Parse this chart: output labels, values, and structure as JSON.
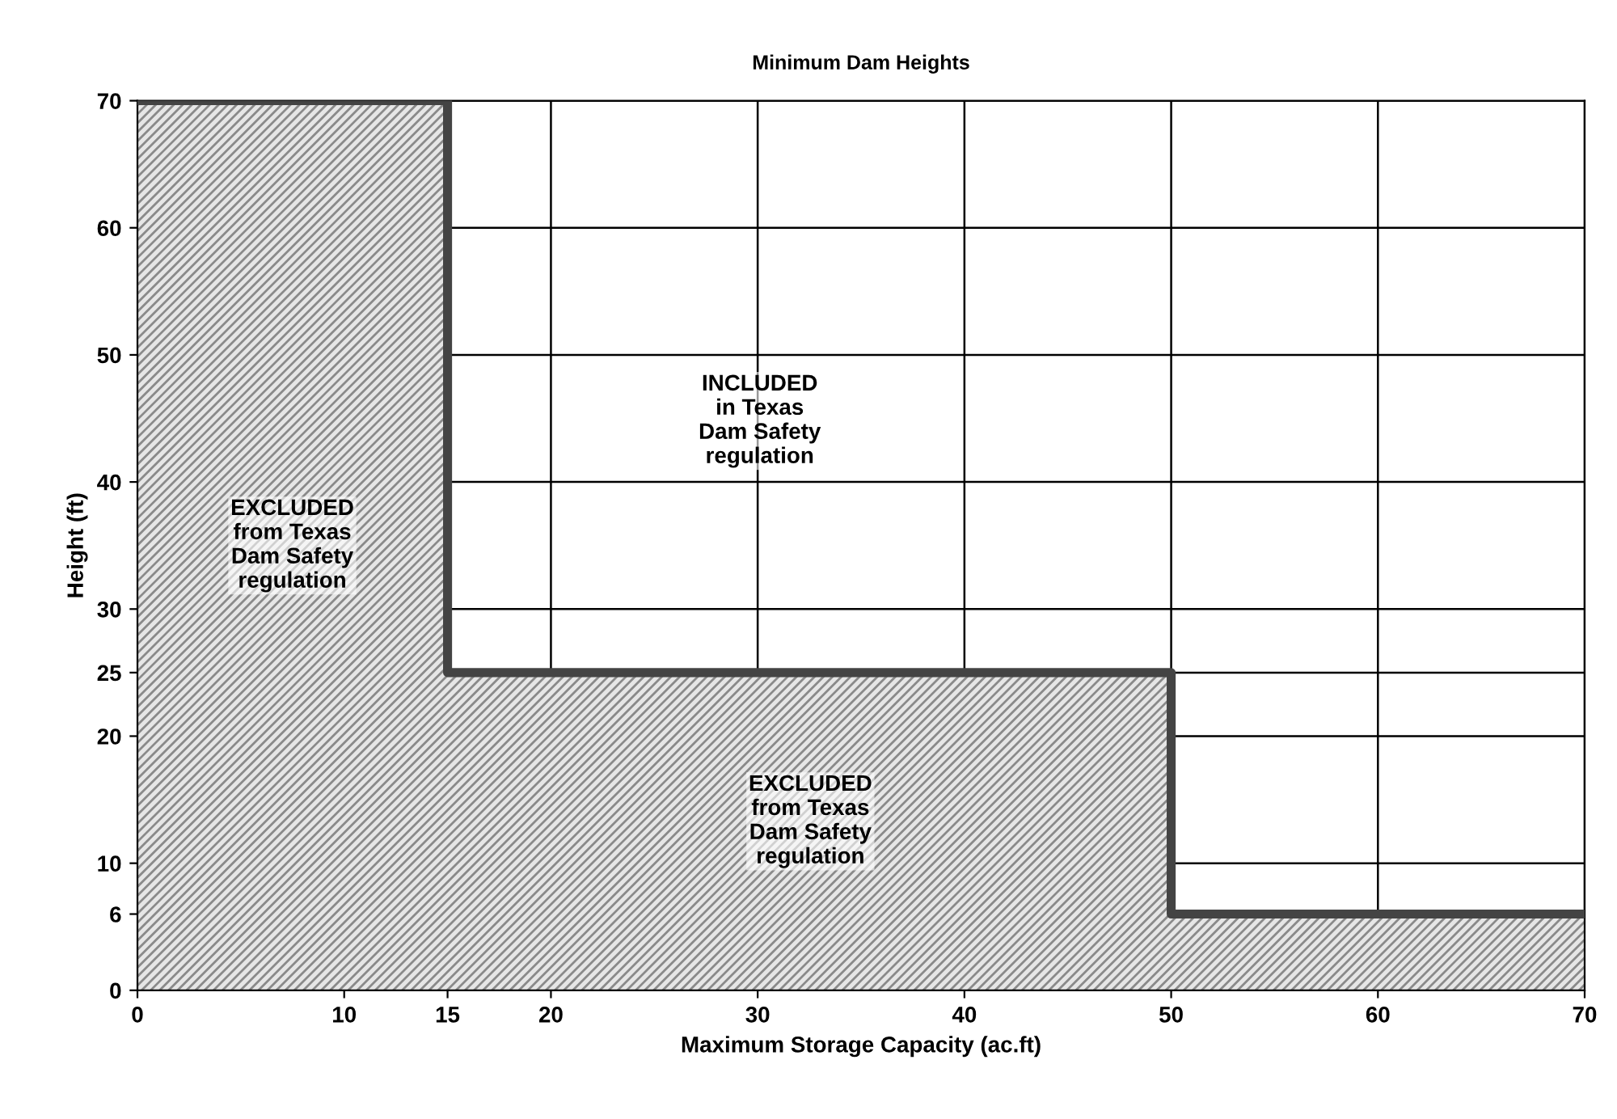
{
  "chart_data": {
    "type": "area",
    "title": "Minimum Dam Heights",
    "xlabel": "Maximum Storage Capacity (ac.ft)",
    "ylabel": "Height (ft)",
    "x": [
      0,
      15,
      15,
      50,
      50,
      70
    ],
    "series": [
      {
        "color": "#444444",
        "values": [
          70,
          70,
          25,
          25,
          6,
          6
        ]
      }
    ],
    "xlim": [
      0,
      70
    ],
    "ylim": [
      0,
      70
    ],
    "xticks": [
      0,
      10,
      15,
      20,
      30,
      40,
      50,
      60,
      70
    ],
    "yticks": [
      0,
      6,
      10,
      20,
      25,
      30,
      40,
      50,
      60,
      70
    ],
    "grid": true,
    "annotations": [
      "INCLUDED\nin Texas\nDam Safety\nregulation",
      "EXCLUDED\nfrom Texas\nDam Safety\nregulation",
      "EXCLUDED\nfrom Texas\nDam Safety\nregulation"
    ]
  }
}
